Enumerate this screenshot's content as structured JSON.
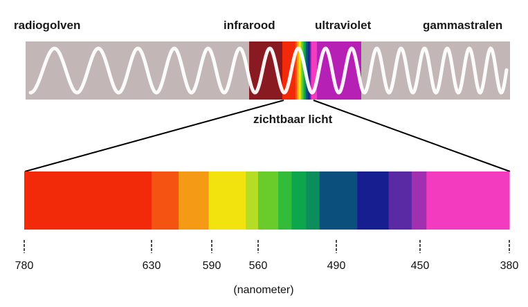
{
  "labels": {
    "radio": "radiogolven",
    "infrared": "infrarood",
    "ultraviolet": "ultraviolet",
    "gamma": "gammastralen",
    "visible": "zichtbaar licht",
    "unit": "(nanometer)"
  },
  "colors": {
    "band_background": "#c3b6b6",
    "wave": "#ffffff",
    "infrared_block": "#8a1a22",
    "ultraviolet_block": "#b620b4"
  },
  "visible_spectrum": {
    "ticks": [
      {
        "label": "780",
        "nm": 780
      },
      {
        "label": "630",
        "nm": 630
      },
      {
        "label": "590",
        "nm": 590
      },
      {
        "label": "560",
        "nm": 560
      },
      {
        "label": "490",
        "nm": 490
      },
      {
        "label": "450",
        "nm": 450
      },
      {
        "label": "380",
        "nm": 380
      }
    ],
    "segments": [
      {
        "from_nm": 780,
        "to_nm": 630,
        "color": "#f32a0a"
      },
      {
        "from_nm": 630,
        "to_nm": 612,
        "color": "#f55312"
      },
      {
        "from_nm": 612,
        "to_nm": 592,
        "color": "#f59a14"
      },
      {
        "from_nm": 592,
        "to_nm": 568,
        "color": "#f2e20e"
      },
      {
        "from_nm": 568,
        "to_nm": 560,
        "color": "#b6dd25"
      },
      {
        "from_nm": 560,
        "to_nm": 542,
        "color": "#69cc2a"
      },
      {
        "from_nm": 542,
        "to_nm": 530,
        "color": "#33bc3a"
      },
      {
        "from_nm": 530,
        "to_nm": 517,
        "color": "#0ea64d"
      },
      {
        "from_nm": 517,
        "to_nm": 505,
        "color": "#0c8d5c"
      },
      {
        "from_nm": 505,
        "to_nm": 480,
        "color": "#0b4f7d"
      },
      {
        "from_nm": 480,
        "to_nm": 465,
        "color": "#171f90"
      },
      {
        "from_nm": 465,
        "to_nm": 454,
        "color": "#5a29a4"
      },
      {
        "from_nm": 454,
        "to_nm": 445,
        "color": "#a030b0"
      },
      {
        "from_nm": 445,
        "to_nm": 380,
        "color": "#f23bbf"
      }
    ]
  }
}
